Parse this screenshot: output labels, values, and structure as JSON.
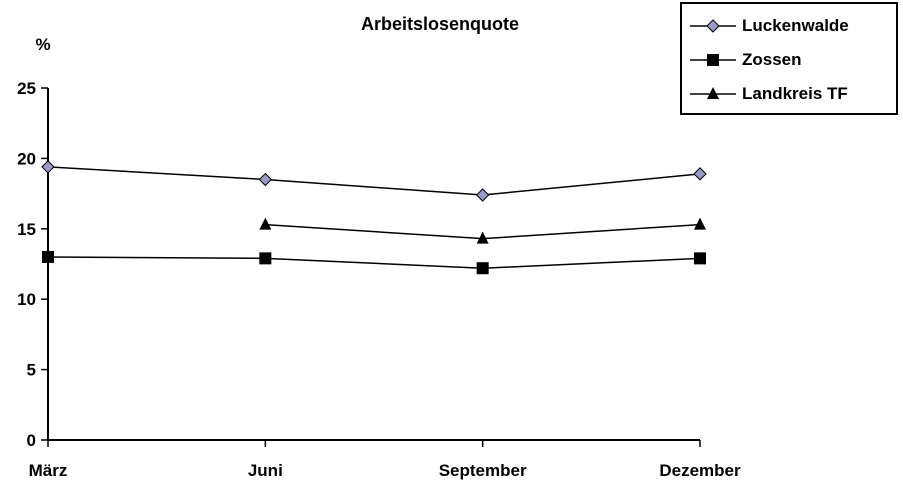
{
  "chart_data": {
    "type": "line",
    "title": "Arbeitslosenquote",
    "ylabel": "%",
    "xlabel": "",
    "categories": [
      "März",
      "Juni",
      "September",
      "Dezember"
    ],
    "ylim": [
      0,
      25
    ],
    "yticks": [
      "0",
      "5",
      "10",
      "15",
      "20",
      "25"
    ],
    "grid": false,
    "legend_position": "top-right",
    "series": [
      {
        "name": "Luckenwalde",
        "marker": "diamond",
        "color": "#000000",
        "marker_fill": "#9a9ac8",
        "values": [
          19.4,
          18.5,
          17.4,
          18.9
        ]
      },
      {
        "name": "Zossen",
        "marker": "square",
        "color": "#000000",
        "marker_fill": "#000000",
        "values": [
          13.0,
          12.9,
          12.2,
          12.9
        ]
      },
      {
        "name": "Landkreis TF",
        "marker": "triangle",
        "color": "#000000",
        "marker_fill": "#000000",
        "values": [
          null,
          15.3,
          14.3,
          15.3
        ]
      }
    ]
  }
}
